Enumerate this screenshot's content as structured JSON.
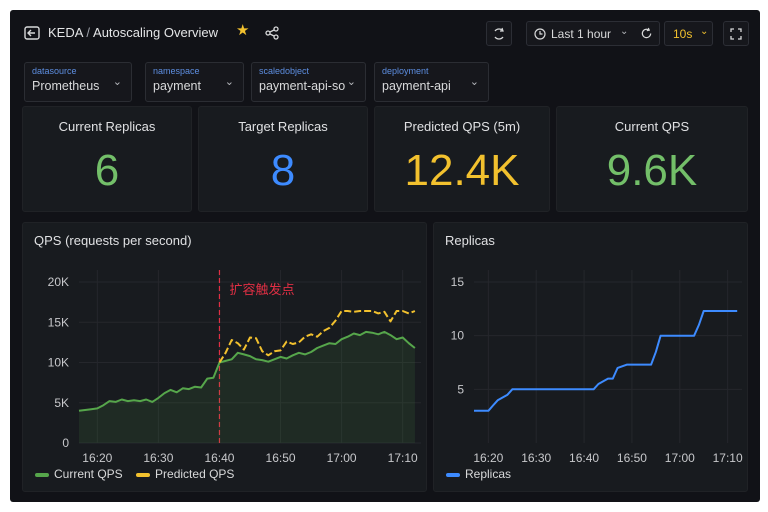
{
  "header": {
    "breadcrumb_parent": "KEDA",
    "breadcrumb_separator": "/",
    "breadcrumb_title": "Autoscaling Overview",
    "icons": [
      "dashboard-icon",
      "star-icon",
      "share-icon",
      "sync-icon",
      "clock-icon",
      "refresh-icon",
      "expand-icon"
    ],
    "star_color": "#f2c12e",
    "time_range": "Last 1 hour",
    "refresh_interval": "10s"
  },
  "variables": [
    {
      "label": "datasource",
      "value": "Prometheus"
    },
    {
      "label": "namespace",
      "value": "payment"
    },
    {
      "label": "scaledobject",
      "value": "payment-api-so"
    },
    {
      "label": "deployment",
      "value": "payment-api"
    }
  ],
  "stats": [
    {
      "title": "Current Replicas",
      "value": "6",
      "color": "#73bf69"
    },
    {
      "title": "Target Replicas",
      "value": "8",
      "color": "#3d8bff"
    },
    {
      "title": "Predicted QPS (5m)",
      "value": "12.4K",
      "color": "#f2c12e"
    },
    {
      "title": "Current QPS",
      "value": "9.6K",
      "color": "#73bf69"
    }
  ],
  "chart_data": [
    {
      "type": "line",
      "title": "QPS (requests per second)",
      "x_ticks": [
        "16:20",
        "16:30",
        "16:40",
        "16:50",
        "17:00",
        "17:10"
      ],
      "y_ticks": [
        "0",
        "5K",
        "10K",
        "15K",
        "20K"
      ],
      "ylim": [
        0,
        20000
      ],
      "grid": true,
      "legend_position": "bottom-left",
      "annotation": {
        "x": "16:40",
        "text": "扩容触发点",
        "color": "#e02f44"
      },
      "series": [
        {
          "name": "Current QPS",
          "color": "#56a64b",
          "x": [
            "16:17",
            "16:19",
            "16:20",
            "16:21",
            "16:22",
            "16:23",
            "16:24",
            "16:25",
            "16:26",
            "16:27",
            "16:28",
            "16:29",
            "16:30",
            "16:31",
            "16:32",
            "16:33",
            "16:34",
            "16:35",
            "16:36",
            "16:37",
            "16:38",
            "16:39",
            "16:40",
            "16:41",
            "16:42",
            "16:43",
            "16:44",
            "16:45",
            "16:46",
            "16:47",
            "16:48",
            "16:49",
            "16:50",
            "16:51",
            "16:52",
            "16:53",
            "16:54",
            "16:55",
            "16:56",
            "16:57",
            "16:58",
            "16:59",
            "17:00",
            "17:01",
            "17:02",
            "17:03",
            "17:04",
            "17:05",
            "17:06",
            "17:07",
            "17:08",
            "17:09",
            "17:10",
            "17:11",
            "17:12"
          ],
          "values": [
            4000,
            4200,
            4300,
            4700,
            5200,
            5100,
            5400,
            5200,
            5300,
            5200,
            5400,
            5100,
            5600,
            6200,
            6600,
            6300,
            6800,
            6700,
            7000,
            6900,
            8000,
            8100,
            10000,
            10200,
            10400,
            11200,
            11000,
            10800,
            10400,
            10300,
            10100,
            10400,
            10700,
            10500,
            10900,
            11200,
            11000,
            11300,
            11800,
            12100,
            12400,
            12300,
            12900,
            13200,
            13600,
            13400,
            13800,
            13700,
            13500,
            13800,
            13400,
            12900,
            13100,
            12400,
            11800
          ]
        },
        {
          "name": "Predicted QPS",
          "color": "#f2c12e",
          "x": [
            "16:40",
            "16:41",
            "16:42",
            "16:43",
            "16:44",
            "16:45",
            "16:46",
            "16:47",
            "16:48",
            "16:49",
            "16:50",
            "16:51",
            "16:52",
            "16:53",
            "16:54",
            "16:55",
            "16:56",
            "16:57",
            "16:58",
            "16:59",
            "17:00",
            "17:01",
            "17:02",
            "17:03",
            "17:04",
            "17:05",
            "17:06",
            "17:07",
            "17:08",
            "17:09",
            "17:10",
            "17:11",
            "17:12"
          ],
          "values": [
            10000,
            11200,
            12800,
            12400,
            11600,
            13100,
            13000,
            11400,
            10900,
            11400,
            11500,
            12600,
            12300,
            12500,
            13200,
            13500,
            13200,
            13900,
            14300,
            15200,
            16400,
            16400,
            16300,
            16400,
            16400,
            16400,
            16100,
            16300,
            15100,
            16400,
            16400,
            16100,
            16400
          ]
        }
      ]
    },
    {
      "type": "line",
      "title": "Replicas",
      "x_ticks": [
        "16:20",
        "16:30",
        "16:40",
        "16:50",
        "17:00",
        "17:10"
      ],
      "y_ticks": [
        "5",
        "10",
        "15"
      ],
      "ylim": [
        0,
        15
      ],
      "grid": true,
      "legend_position": "bottom-left",
      "series": [
        {
          "name": "Replicas",
          "color": "#3d8bff",
          "x": [
            "16:17",
            "16:20",
            "16:21",
            "16:22",
            "16:24",
            "16:25",
            "16:31",
            "16:34",
            "16:36",
            "16:42",
            "16:43",
            "16:45",
            "16:46",
            "16:47",
            "16:49",
            "16:54",
            "16:55",
            "16:56",
            "17:00",
            "17:03",
            "17:04",
            "17:05",
            "17:07",
            "17:12"
          ],
          "values": [
            3,
            3,
            3.5,
            4,
            4.5,
            5,
            5,
            5,
            5,
            5,
            5.5,
            6,
            6,
            7,
            7.3,
            7.3,
            8.5,
            10,
            10,
            10,
            11,
            12.3,
            12.3,
            12.3
          ]
        }
      ]
    }
  ]
}
